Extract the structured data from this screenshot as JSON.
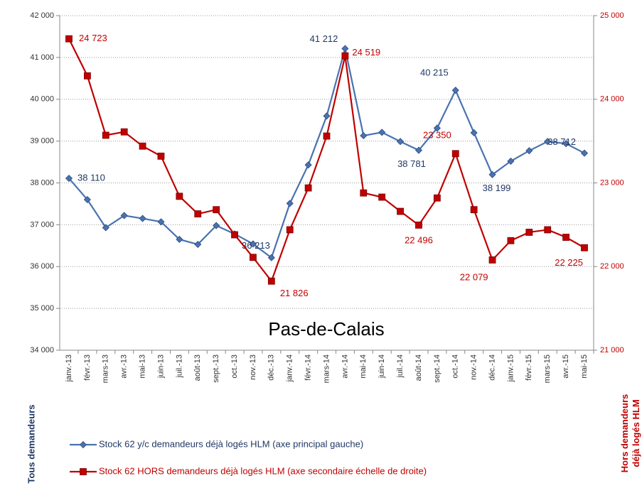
{
  "chart_data": {
    "type": "line",
    "title": "Pas-de-Calais",
    "ylabel": "Tous demandeurs",
    "y2label": "Hors demandeurs déjà logés HLM",
    "categories": [
      "janv.-13",
      "févr.-13",
      "mars-13",
      "avr.-13",
      "mai-13",
      "juin-13",
      "juil.-13",
      "août-13",
      "sept.-13",
      "oct.-13",
      "nov.-13",
      "déc.-13",
      "janv.-14",
      "févr.-14",
      "mars-14",
      "avr.-14",
      "mai-14",
      "juin-14",
      "juil.-14",
      "août-14",
      "sept.-14",
      "oct.-14",
      "nov.-14",
      "déc.-14",
      "janv.-15",
      "févr.-15",
      "mars-15",
      "avr.-15",
      "mai-15"
    ],
    "series": [
      {
        "name": "Stock 62 y/c demandeurs déjà logés HLM (axe principal gauche)",
        "color": "#4a72b0",
        "marker": "diamond",
        "axis": "y",
        "values": [
          38110,
          37600,
          36930,
          37220,
          37150,
          37070,
          36650,
          36530,
          36980,
          36780,
          36540,
          36213,
          37510,
          38430,
          39600,
          41212,
          39130,
          39210,
          38990,
          38781,
          39310,
          40215,
          39200,
          38199,
          38520,
          38770,
          38990,
          38940,
          38712
        ],
        "value_labels": [
          "38 110",
          null,
          null,
          null,
          null,
          null,
          null,
          null,
          null,
          null,
          null,
          "36 213",
          null,
          null,
          null,
          "41 212",
          null,
          null,
          null,
          "38 781",
          null,
          "40 215",
          null,
          "38 199",
          null,
          null,
          null,
          null,
          "38 712"
        ]
      },
      {
        "name": "Stock 62 HORS demandeurs déjà logés HLM (axe secondaire échelle de droite)",
        "color": "#c00000",
        "marker": "square",
        "axis": "y2",
        "values": [
          24723,
          24280,
          23570,
          23610,
          23440,
          23320,
          22840,
          22630,
          22680,
          22380,
          22110,
          21826,
          22440,
          22940,
          23560,
          24519,
          22880,
          22830,
          22660,
          22496,
          22820,
          23350,
          22680,
          22079,
          22310,
          22410,
          22440,
          22350,
          22225
        ],
        "value_labels": [
          "24 723",
          null,
          null,
          null,
          null,
          null,
          null,
          null,
          null,
          null,
          null,
          "21 826",
          null,
          null,
          null,
          "24 519",
          null,
          null,
          null,
          "22 496",
          null,
          "23 350",
          null,
          "22 079",
          null,
          null,
          null,
          null,
          "22 225"
        ]
      }
    ],
    "ylim": [
      34000,
      42000
    ],
    "yticks": [
      {
        "value": 34000,
        "label": "34 000"
      },
      {
        "value": 35000,
        "label": "35 000"
      },
      {
        "value": 36000,
        "label": "36 000"
      },
      {
        "value": 37000,
        "label": "37 000"
      },
      {
        "value": 38000,
        "label": "38 000"
      },
      {
        "value": 39000,
        "label": "39 000"
      },
      {
        "value": 40000,
        "label": "40 000"
      },
      {
        "value": 41000,
        "label": "41 000"
      },
      {
        "value": 42000,
        "label": "42 000"
      }
    ],
    "y2lim": [
      21000,
      25000
    ],
    "y2ticks": [
      {
        "value": 21000,
        "label": "21 000"
      },
      {
        "value": 22000,
        "label": "22 000"
      },
      {
        "value": 23000,
        "label": "23 000"
      },
      {
        "value": 24000,
        "label": "24 000"
      },
      {
        "value": 25000,
        "label": "25 000"
      }
    ],
    "grid": true
  }
}
